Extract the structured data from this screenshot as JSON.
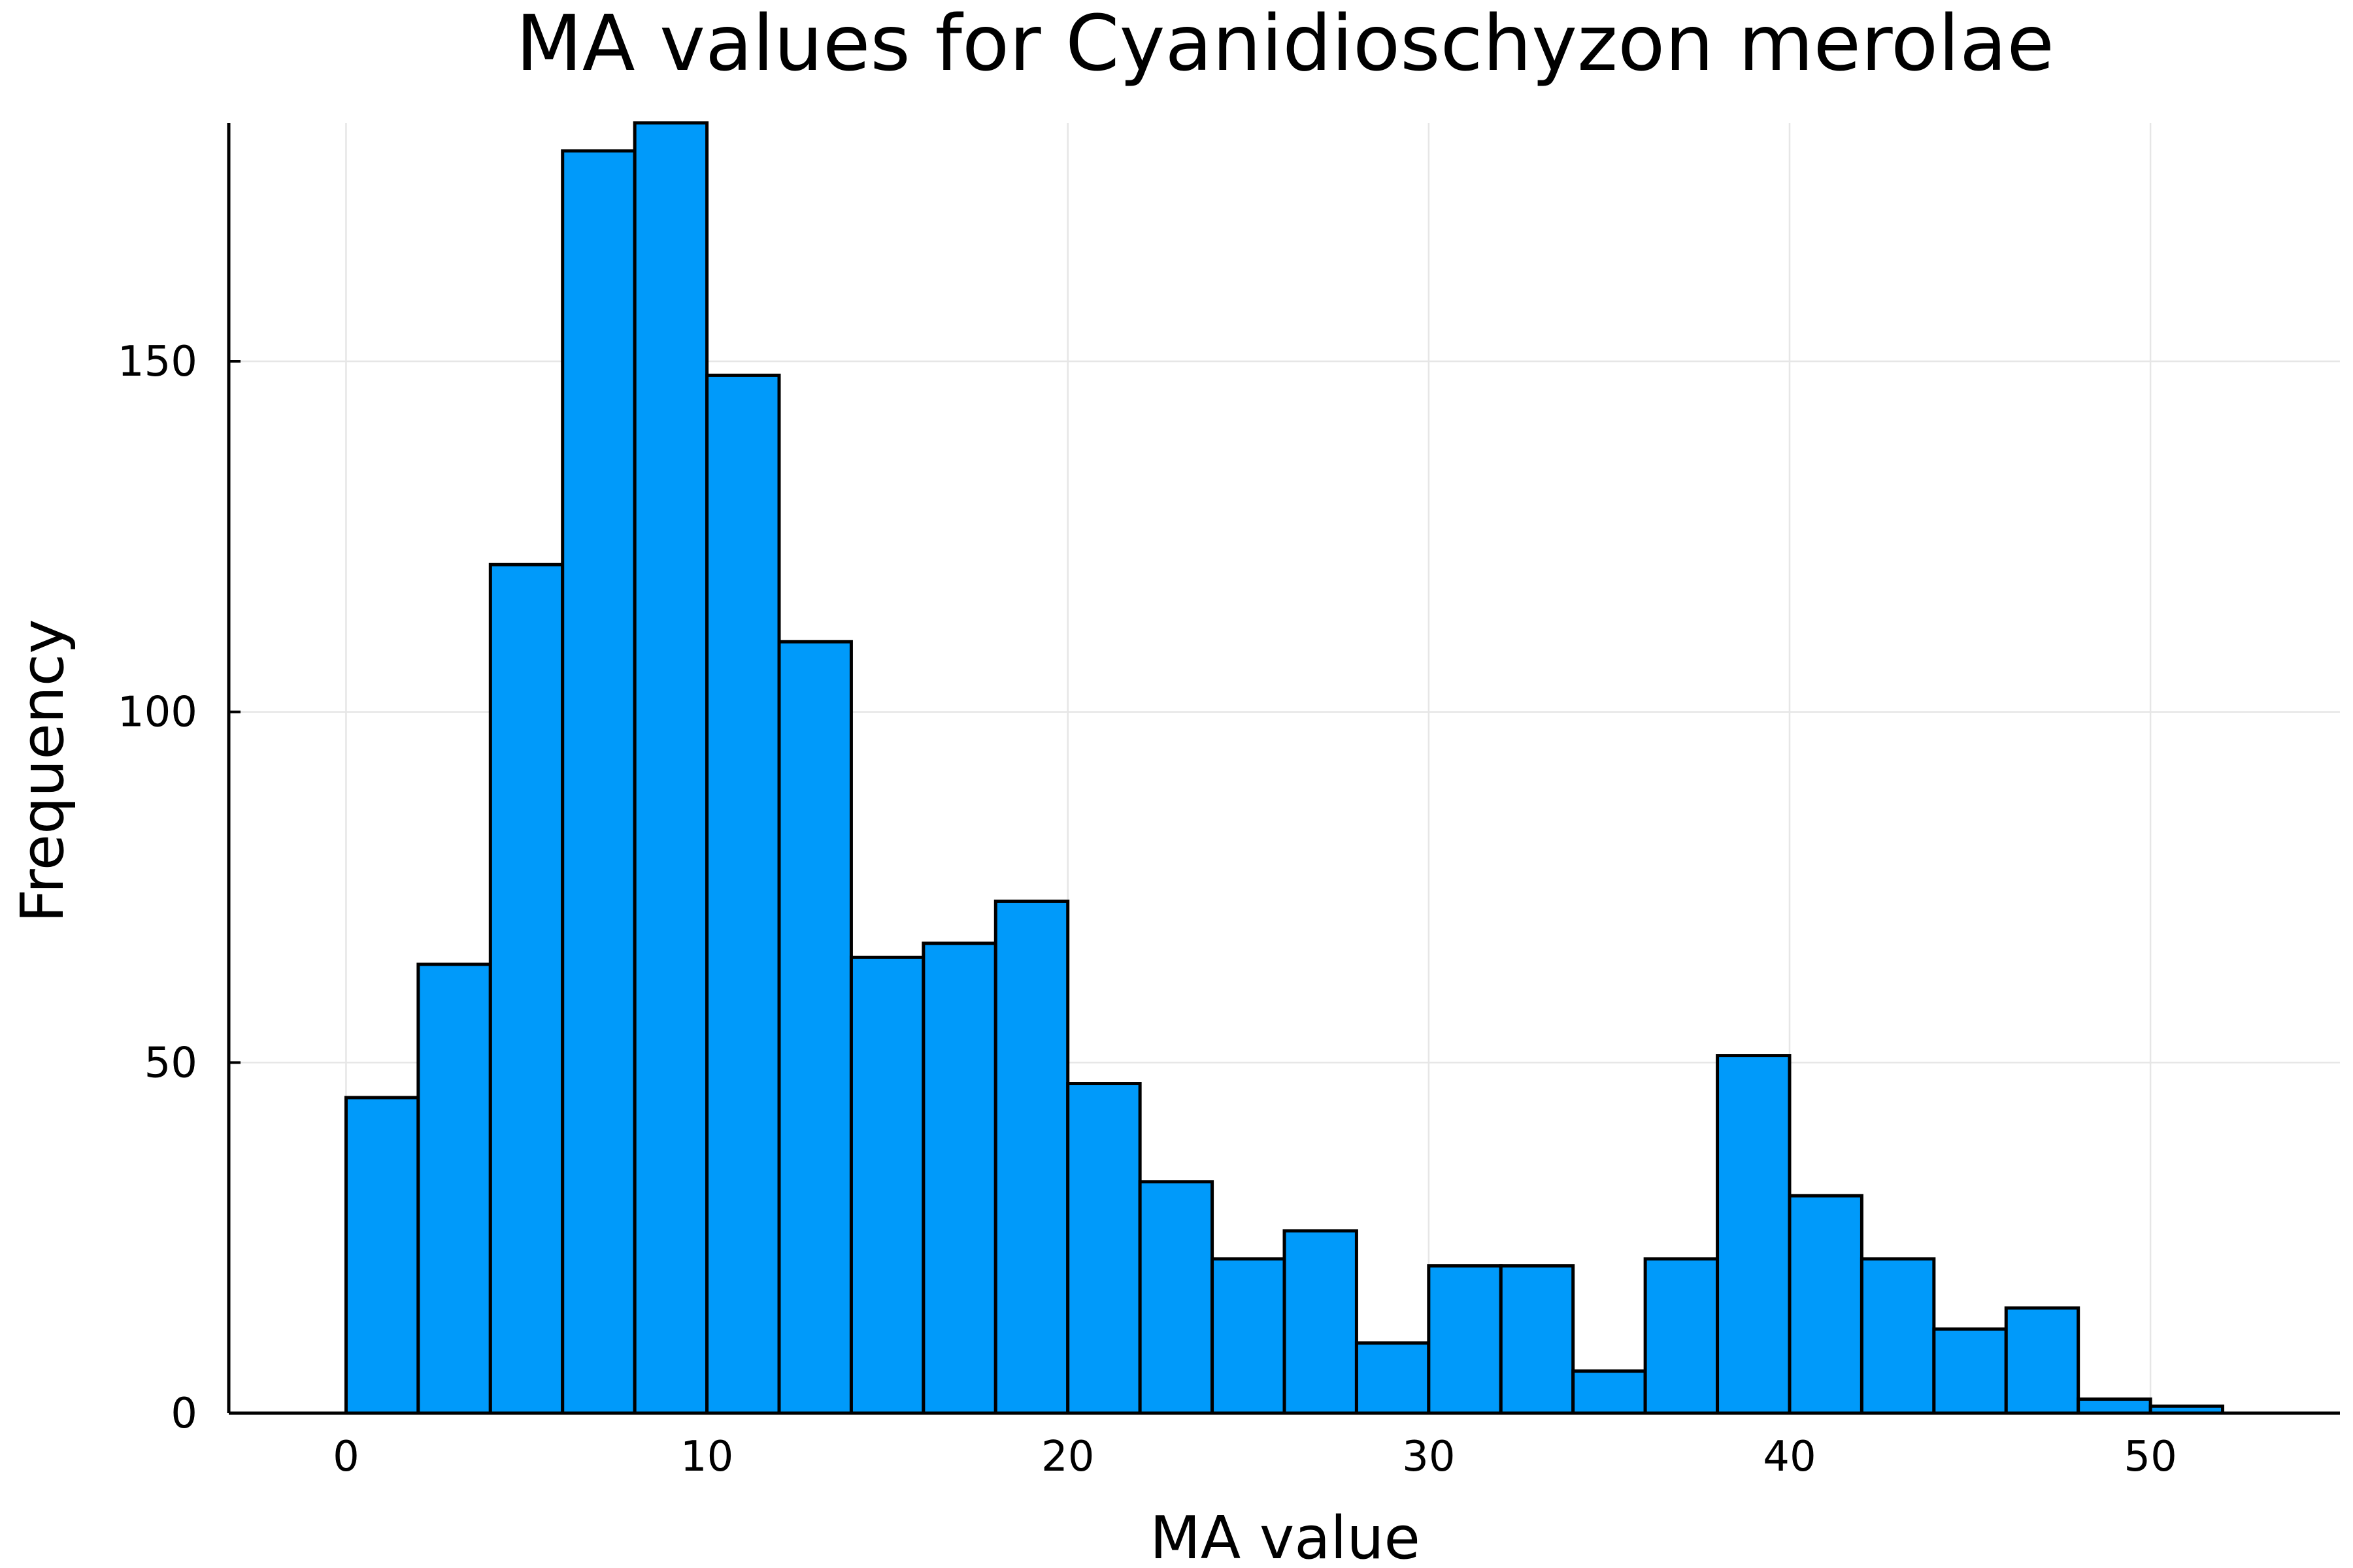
{
  "chart_data": {
    "type": "bar",
    "title": "MA values for Cyanidioschyzon merolae",
    "xlabel": "MA value",
    "ylabel": "Frequency",
    "bin_width": 2,
    "bin_edges": [
      0,
      2,
      4,
      6,
      8,
      10,
      12,
      14,
      16,
      18,
      20,
      22,
      24,
      26,
      28,
      30,
      32,
      34,
      36,
      38,
      40,
      42,
      44,
      46,
      48,
      50,
      52
    ],
    "values": [
      45,
      64,
      121,
      180,
      184,
      148,
      110,
      65,
      67,
      73,
      47,
      33,
      22,
      26,
      10,
      21,
      21,
      6,
      22,
      51,
      31,
      22,
      12,
      15,
      2,
      1
    ],
    "xlim": [
      -3.25,
      55.25
    ],
    "ylim": [
      0,
      184
    ],
    "xticks": [
      0,
      10,
      20,
      30,
      40,
      50
    ],
    "yticks": [
      0,
      50,
      100,
      150
    ],
    "grid": true,
    "legend": "none",
    "bar_color": "#009AFA",
    "edge_color": "#000000"
  }
}
